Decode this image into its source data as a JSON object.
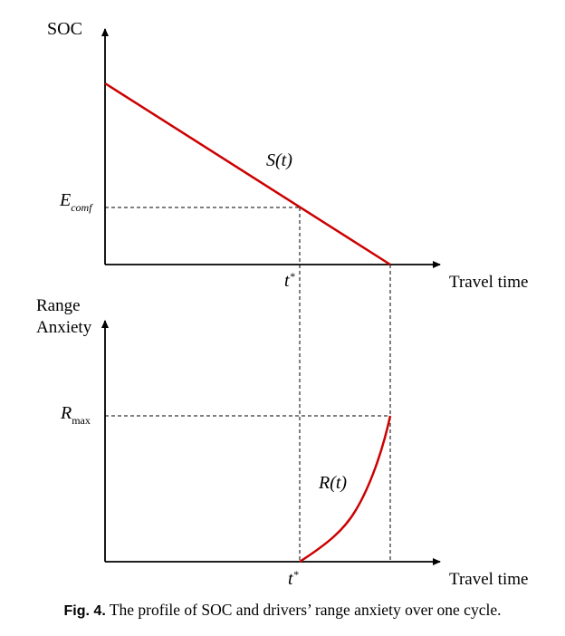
{
  "diagram": {
    "top_panel": {
      "y_axis_label": "SOC",
      "x_axis_label": "Travel time",
      "curve_label": "S(t)",
      "comfort_level_label": {
        "main": "E",
        "sub": "comf"
      },
      "time_marker_label": {
        "main": "t",
        "sup": "*"
      }
    },
    "bottom_panel": {
      "y_axis_label_line1": "Range",
      "y_axis_label_line2": "Anxiety",
      "x_axis_label": "Travel time",
      "curve_label": "R(t)",
      "max_level_label": {
        "main": "R",
        "sub": "max"
      },
      "time_marker_label": {
        "main": "t",
        "sup": "*"
      }
    },
    "colors": {
      "curve": "#cc0000",
      "axes": "#000000",
      "guides": "#000000"
    }
  },
  "caption": {
    "prefix": "Fig. 4.",
    "text": "The profile of SOC and drivers’ range anxiety over one cycle."
  }
}
